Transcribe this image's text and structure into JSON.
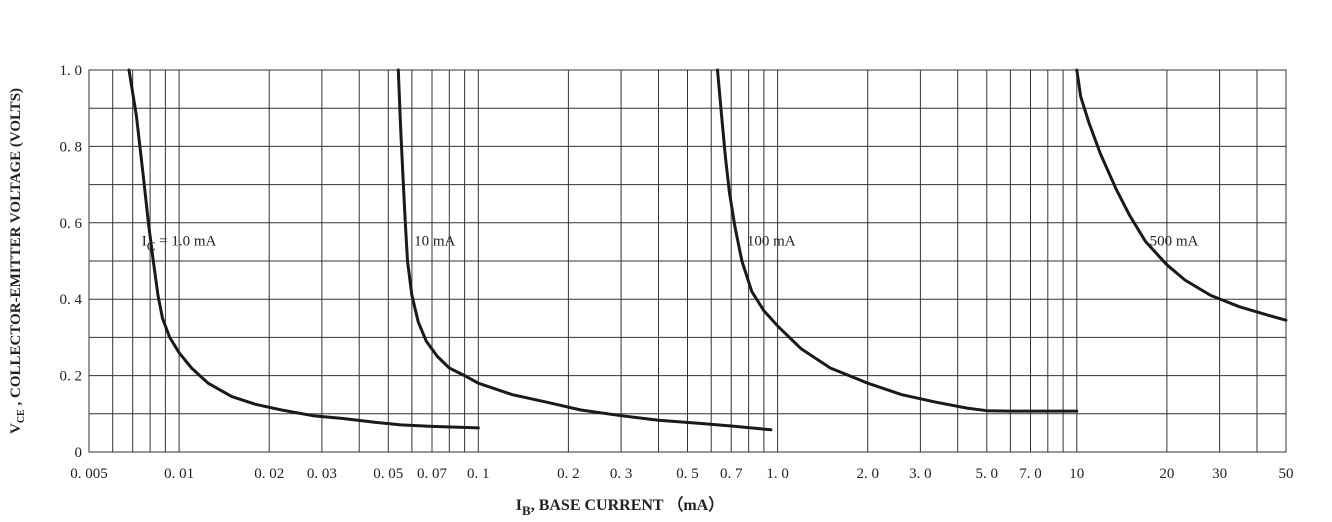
{
  "chart_data": {
    "type": "line",
    "x_scale": "log",
    "grid": "on",
    "xlim": [
      0.005,
      50
    ],
    "ylim": [
      0,
      1.0
    ],
    "x_ticks": [
      {
        "value": 0.005,
        "label": "0. 005"
      },
      {
        "value": 0.01,
        "label": "0. 01"
      },
      {
        "value": 0.02,
        "label": "0. 02"
      },
      {
        "value": 0.03,
        "label": "0. 03"
      },
      {
        "value": 0.05,
        "label": "0. 05"
      },
      {
        "value": 0.07,
        "label": "0. 07"
      },
      {
        "value": 0.1,
        "label": "0. 1"
      },
      {
        "value": 0.2,
        "label": "0. 2"
      },
      {
        "value": 0.3,
        "label": "0. 3"
      },
      {
        "value": 0.5,
        "label": "0. 5"
      },
      {
        "value": 0.7,
        "label": "0. 7"
      },
      {
        "value": 1.0,
        "label": "1. 0"
      },
      {
        "value": 2.0,
        "label": "2. 0"
      },
      {
        "value": 3.0,
        "label": "3. 0"
      },
      {
        "value": 5.0,
        "label": "5. 0"
      },
      {
        "value": 7.0,
        "label": "7. 0"
      },
      {
        "value": 10,
        "label": "10"
      },
      {
        "value": 20,
        "label": "20"
      },
      {
        "value": 30,
        "label": "30"
      },
      {
        "value": 50,
        "label": "50"
      }
    ],
    "y_ticks": [
      {
        "value": 0,
        "label": "0"
      },
      {
        "value": 0.2,
        "label": "0. 2"
      },
      {
        "value": 0.4,
        "label": "0. 4"
      },
      {
        "value": 0.6,
        "label": "0. 6"
      },
      {
        "value": 0.8,
        "label": "0. 8"
      },
      {
        "value": 1.0,
        "label": "1. 0"
      }
    ],
    "xlabel": {
      "main": "I",
      "sub": "B",
      "rest": ",  BASE  CURRENT （mA）"
    },
    "ylabel": {
      "main": "V",
      "sub": "CE",
      "rest": " , COLLECTOR-EMITTER VOLTAGE (VOLTS)"
    },
    "series": [
      {
        "name": "I_C = 1.0 mA",
        "label_parts": {
          "main": "I",
          "sub": "C",
          "rest": " = 1.0 mA"
        },
        "label_anchor": {
          "x": 0.0075,
          "y": 0.54
        },
        "x": [
          0.0068,
          0.0072,
          0.0076,
          0.0079,
          0.0082,
          0.0085,
          0.0088,
          0.0093,
          0.01,
          0.011,
          0.0125,
          0.015,
          0.018,
          0.022,
          0.028,
          0.035,
          0.045,
          0.055,
          0.07,
          0.1
        ],
        "y": [
          1.0,
          0.88,
          0.72,
          0.6,
          0.5,
          0.41,
          0.35,
          0.3,
          0.26,
          0.22,
          0.18,
          0.145,
          0.125,
          0.11,
          0.095,
          0.088,
          0.078,
          0.071,
          0.067,
          0.063
        ]
      },
      {
        "name": "10 mA",
        "label_parts": {
          "main": "10  mA",
          "sub": "",
          "rest": ""
        },
        "label_anchor": {
          "x": 0.061,
          "y": 0.54
        },
        "x": [
          0.054,
          0.055,
          0.056,
          0.057,
          0.058,
          0.06,
          0.063,
          0.067,
          0.073,
          0.08,
          0.09,
          0.1,
          0.13,
          0.17,
          0.22,
          0.3,
          0.4,
          0.55,
          0.7,
          0.95
        ],
        "y": [
          1.0,
          0.85,
          0.72,
          0.6,
          0.5,
          0.41,
          0.34,
          0.29,
          0.25,
          0.22,
          0.2,
          0.18,
          0.15,
          0.13,
          0.11,
          0.095,
          0.083,
          0.075,
          0.068,
          0.058
        ]
      },
      {
        "name": "100 mA",
        "label_parts": {
          "main": "100  mA",
          "sub": "",
          "rest": ""
        },
        "label_anchor": {
          "x": 0.79,
          "y": 0.54
        },
        "x": [
          0.63,
          0.65,
          0.67,
          0.69,
          0.72,
          0.76,
          0.82,
          0.9,
          1.0,
          1.2,
          1.5,
          2.0,
          2.6,
          3.4,
          4.3,
          5.0,
          6.0,
          7.5,
          10
        ],
        "y": [
          1.0,
          0.88,
          0.77,
          0.68,
          0.59,
          0.5,
          0.42,
          0.37,
          0.33,
          0.27,
          0.22,
          0.18,
          0.15,
          0.13,
          0.115,
          0.108,
          0.107,
          0.107,
          0.107
        ]
      },
      {
        "name": "500 mA",
        "label_parts": {
          "main": "500  mA",
          "sub": "",
          "rest": ""
        },
        "label_anchor": {
          "x": 17.5,
          "y": 0.54
        },
        "x": [
          10,
          10.3,
          11,
          12,
          13.5,
          15,
          17,
          20,
          23,
          28,
          35,
          45,
          50
        ],
        "y": [
          1.0,
          0.93,
          0.86,
          0.78,
          0.69,
          0.62,
          0.55,
          0.49,
          0.45,
          0.41,
          0.38,
          0.355,
          0.345
        ]
      }
    ]
  }
}
